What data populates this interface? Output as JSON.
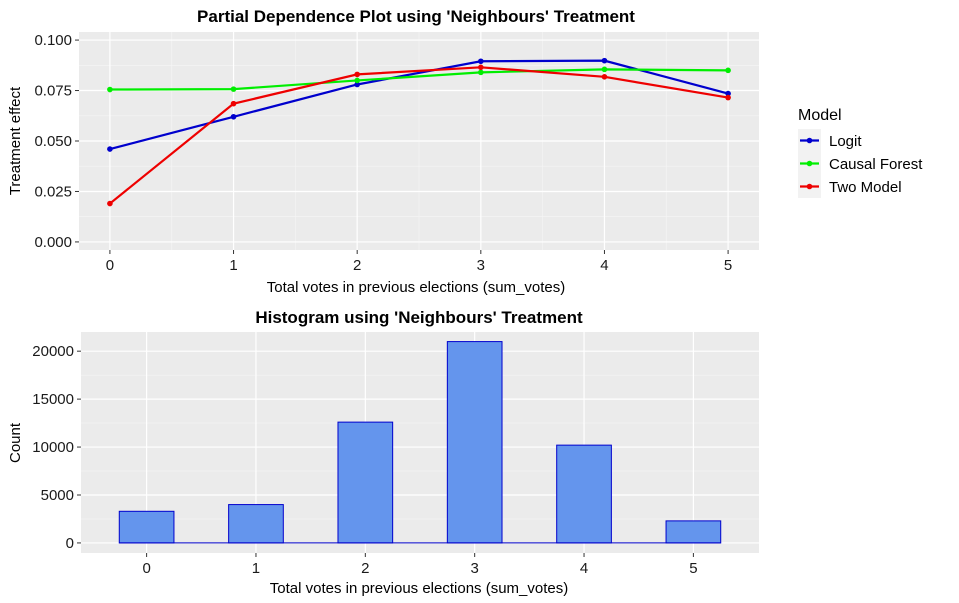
{
  "chart_data": [
    {
      "type": "line",
      "title": "Partial Dependence Plot using 'Neighbours' Treatment",
      "xlabel": "Total votes in previous elections (sum_votes)",
      "ylabel": "Treatment effect",
      "x": [
        0,
        1,
        2,
        3,
        4,
        5
      ],
      "xlim": [
        -0.25,
        5.25
      ],
      "ylim": [
        -0.004,
        0.104
      ],
      "x_ticks": [
        "0",
        "1",
        "2",
        "3",
        "4",
        "5"
      ],
      "y_ticks": [
        {
          "value": 0.0,
          "label": "0.000"
        },
        {
          "value": 0.025,
          "label": "0.025"
        },
        {
          "value": 0.05,
          "label": "0.050"
        },
        {
          "value": 0.075,
          "label": "0.075"
        },
        {
          "value": 0.1,
          "label": "0.100"
        }
      ],
      "grid": true,
      "legend": {
        "title": "Model",
        "position": "right"
      },
      "series": [
        {
          "name": "Logit",
          "color": "#0000CD",
          "values": [
            0.046,
            0.062,
            0.078,
            0.0895,
            0.0898,
            0.0735
          ]
        },
        {
          "name": "Causal Forest",
          "color": "#00EE00",
          "values": [
            0.0755,
            0.0757,
            0.08,
            0.084,
            0.0855,
            0.085
          ]
        },
        {
          "name": "Two Model",
          "color": "#EE0000",
          "values": [
            0.019,
            0.0685,
            0.083,
            0.0865,
            0.0818,
            0.0715
          ]
        }
      ]
    },
    {
      "type": "bar",
      "title": "Histogram using 'Neighbours' Treatment",
      "xlabel": "Total votes in previous elections (sum_votes)",
      "ylabel": "Count",
      "categories": [
        "0",
        "1",
        "2",
        "3",
        "4",
        "5"
      ],
      "values": [
        3300,
        4000,
        12600,
        21000,
        10200,
        2300
      ],
      "xlim": [
        -0.6,
        5.6
      ],
      "ylim": [
        -1050,
        22000
      ],
      "y_ticks": [
        {
          "value": 0,
          "label": "0"
        },
        {
          "value": 5000,
          "label": "5000"
        },
        {
          "value": 10000,
          "label": "10000"
        },
        {
          "value": 15000,
          "label": "15000"
        },
        {
          "value": 20000,
          "label": "20000"
        }
      ],
      "grid": true,
      "bar_fill": "#6495ED",
      "bar_stroke": "#0000CD"
    }
  ]
}
